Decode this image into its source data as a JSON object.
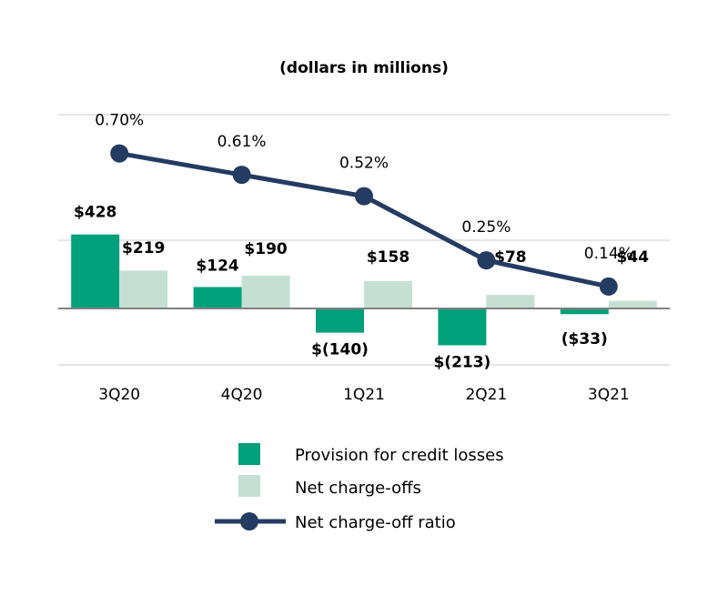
{
  "chart_data": {
    "type": "bar",
    "title": "(dollars in millions)",
    "categories": [
      "3Q20",
      "4Q20",
      "1Q21",
      "2Q21",
      "3Q21"
    ],
    "series": [
      {
        "name": "Provision for credit losses",
        "values": [
          428,
          124,
          -140,
          -213,
          -33
        ],
        "labels": [
          "$428",
          "$124",
          "$(140)",
          "$(213)",
          "($33)"
        ],
        "color": "#00a07a"
      },
      {
        "name": "Net charge-offs",
        "values": [
          219,
          190,
          158,
          78,
          44
        ],
        "labels": [
          "$219",
          "$190",
          "$158",
          "$78",
          "$44"
        ],
        "color": "#c5e0d3"
      }
    ],
    "line_series": {
      "name": "Net charge-off ratio",
      "values": [
        0.7,
        0.61,
        0.52,
        0.25,
        0.14
      ],
      "labels": [
        "0.70%",
        "0.61%",
        "0.52%",
        "0.25%",
        "0.14%"
      ],
      "color": "#243b62"
    },
    "grid": true,
    "legend_position": "bottom"
  }
}
